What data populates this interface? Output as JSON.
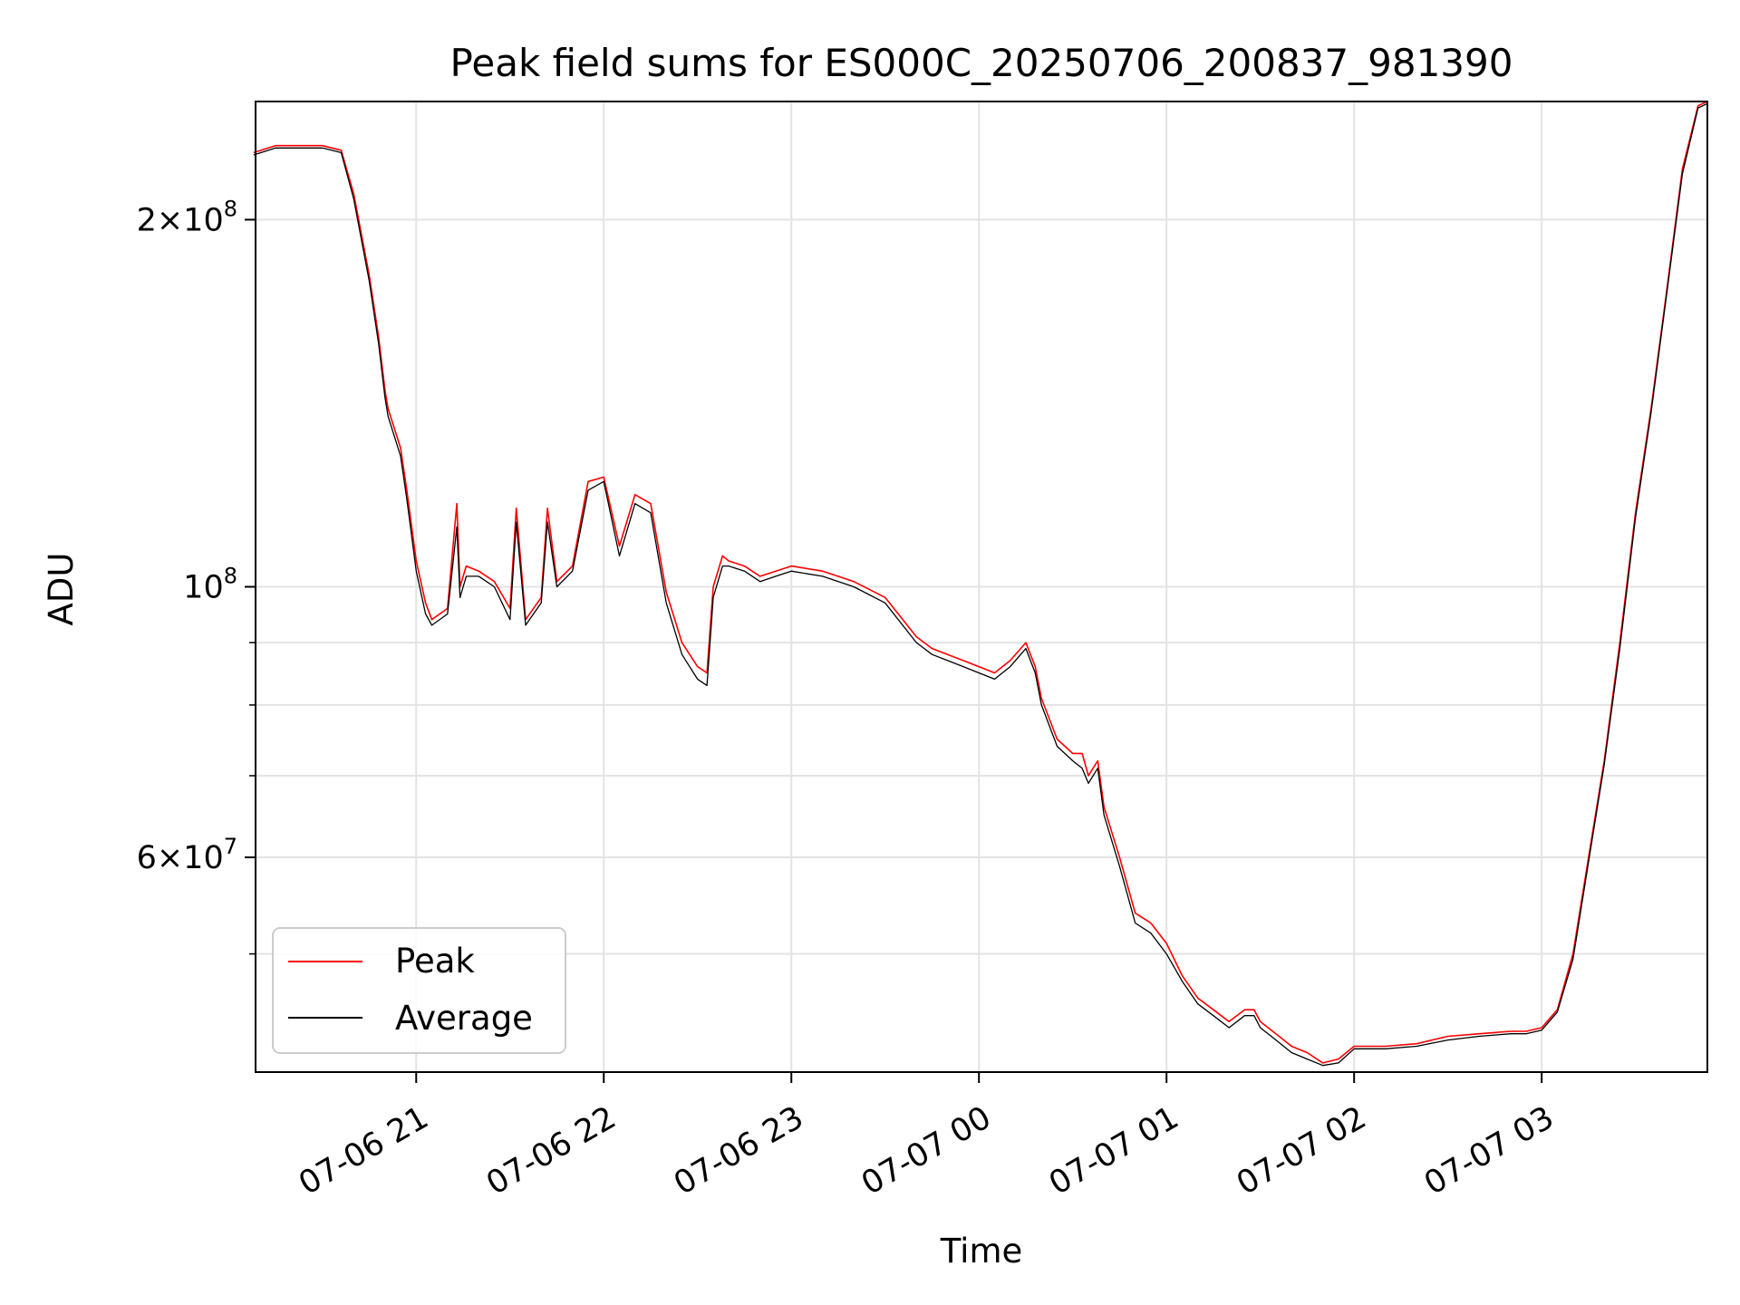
{
  "chart_data": {
    "type": "line",
    "title": "Peak field sums for ES000C_20250706_200837_981390",
    "xlabel": "Time",
    "ylabel": "ADU",
    "yscale": "log",
    "xlim": [
      "2025-07-06 20:08:37",
      "2025-07-07 03:53:00"
    ],
    "ylim": [
      40000000,
      250000000
    ],
    "grid": true,
    "legend": {
      "placement": "lower left",
      "entries": [
        "Peak",
        "Average"
      ]
    },
    "x_ticks": [
      {
        "value": "2025-07-06 21:00",
        "label": "07-06 21"
      },
      {
        "value": "2025-07-06 22:00",
        "label": "07-06 22"
      },
      {
        "value": "2025-07-06 23:00",
        "label": "07-06 23"
      },
      {
        "value": "2025-07-07 00:00",
        "label": "07-07 00"
      },
      {
        "value": "2025-07-07 01:00",
        "label": "07-07 01"
      },
      {
        "value": "2025-07-07 02:00",
        "label": "07-07 02"
      },
      {
        "value": "2025-07-07 03:00",
        "label": "07-07 03"
      }
    ],
    "y_major_ticks": [
      {
        "value": 100000000,
        "mantissa": "",
        "base": "10",
        "exp": "8"
      },
      {
        "value": 200000000,
        "mantissa": "2",
        "base": "10",
        "exp": "8"
      },
      {
        "value": 60000000,
        "mantissa": "6",
        "base": "10",
        "exp": "7"
      }
    ],
    "y_minor_ticks": [
      50000000,
      70000000,
      80000000,
      90000000
    ],
    "series": [
      {
        "name": "Peak",
        "color": "#ff0000",
        "x": [
          "2025-07-06 20:08",
          "2025-07-06 20:15",
          "2025-07-06 20:30",
          "2025-07-06 20:36",
          "2025-07-06 20:40",
          "2025-07-06 20:45",
          "2025-07-06 20:48",
          "2025-07-06 20:50",
          "2025-07-06 20:51",
          "2025-07-06 20:55",
          "2025-07-06 20:57",
          "2025-07-06 21:00",
          "2025-07-06 21:03",
          "2025-07-06 21:05",
          "2025-07-06 21:10",
          "2025-07-06 21:13",
          "2025-07-06 21:14",
          "2025-07-06 21:16",
          "2025-07-06 21:20",
          "2025-07-06 21:25",
          "2025-07-06 21:30",
          "2025-07-06 21:32",
          "2025-07-06 21:35",
          "2025-07-06 21:40",
          "2025-07-06 21:42",
          "2025-07-06 21:45",
          "2025-07-06 21:50",
          "2025-07-06 21:55",
          "2025-07-06 22:00",
          "2025-07-06 22:05",
          "2025-07-06 22:10",
          "2025-07-06 22:15",
          "2025-07-06 22:20",
          "2025-07-06 22:25",
          "2025-07-06 22:30",
          "2025-07-06 22:33",
          "2025-07-06 22:35",
          "2025-07-06 22:38",
          "2025-07-06 22:40",
          "2025-07-06 22:45",
          "2025-07-06 22:50",
          "2025-07-06 22:55",
          "2025-07-06 23:00",
          "2025-07-06 23:10",
          "2025-07-06 23:20",
          "2025-07-06 23:30",
          "2025-07-06 23:40",
          "2025-07-06 23:45",
          "2025-07-06 23:50",
          "2025-07-06 23:55",
          "2025-07-07 00:00",
          "2025-07-07 00:05",
          "2025-07-07 00:10",
          "2025-07-07 00:15",
          "2025-07-07 00:18",
          "2025-07-07 00:20",
          "2025-07-07 00:25",
          "2025-07-07 00:30",
          "2025-07-07 00:33",
          "2025-07-07 00:35",
          "2025-07-07 00:38",
          "2025-07-07 00:40",
          "2025-07-07 00:45",
          "2025-07-07 00:50",
          "2025-07-07 00:55",
          "2025-07-07 01:00",
          "2025-07-07 01:05",
          "2025-07-07 01:10",
          "2025-07-07 01:15",
          "2025-07-07 01:20",
          "2025-07-07 01:25",
          "2025-07-07 01:28",
          "2025-07-07 01:30",
          "2025-07-07 01:35",
          "2025-07-07 01:40",
          "2025-07-07 01:45",
          "2025-07-07 01:50",
          "2025-07-07 01:55",
          "2025-07-07 02:00",
          "2025-07-07 02:10",
          "2025-07-07 02:20",
          "2025-07-07 02:30",
          "2025-07-07 02:40",
          "2025-07-07 02:50",
          "2025-07-07 02:55",
          "2025-07-07 03:00",
          "2025-07-07 03:05",
          "2025-07-07 03:10",
          "2025-07-07 03:15",
          "2025-07-07 03:20",
          "2025-07-07 03:25",
          "2025-07-07 03:30",
          "2025-07-07 03:35",
          "2025-07-07 03:40",
          "2025-07-07 03:45",
          "2025-07-07 03:50",
          "2025-07-07 03:53"
        ],
        "y": [
          227000000,
          230000000,
          230000000,
          228000000,
          210000000,
          180000000,
          160000000,
          145000000,
          140000000,
          130000000,
          120000000,
          105000000,
          97000000,
          94000000,
          96000000,
          117000000,
          100000000,
          104000000,
          103000000,
          101000000,
          96000000,
          116000000,
          94000000,
          98000000,
          116000000,
          101000000,
          104000000,
          122000000,
          123000000,
          108000000,
          119000000,
          117000000,
          99000000,
          90000000,
          86000000,
          85000000,
          100000000,
          106000000,
          105000000,
          104000000,
          102000000,
          103000000,
          104000000,
          103000000,
          101000000,
          98000000,
          91000000,
          89000000,
          88000000,
          87000000,
          86000000,
          85000000,
          87000000,
          90000000,
          86000000,
          81000000,
          75000000,
          73000000,
          73000000,
          70000000,
          72000000,
          66000000,
          60000000,
          54000000,
          53000000,
          51000000,
          48000000,
          46000000,
          45000000,
          44000000,
          45000000,
          45000000,
          44000000,
          43000000,
          42000000,
          41500000,
          40700000,
          41000000,
          42000000,
          42000000,
          42200000,
          42800000,
          43000000,
          43200000,
          43200000,
          43500000,
          45000000,
          50000000,
          60000000,
          72000000,
          90000000,
          115000000,
          140000000,
          175000000,
          220000000,
          248000000,
          250000000
        ]
      },
      {
        "name": "Average",
        "color": "#000000",
        "x": [
          "2025-07-06 20:08",
          "2025-07-06 20:15",
          "2025-07-06 20:30",
          "2025-07-06 20:36",
          "2025-07-06 20:40",
          "2025-07-06 20:45",
          "2025-07-06 20:48",
          "2025-07-06 20:50",
          "2025-07-06 20:51",
          "2025-07-06 20:55",
          "2025-07-06 20:57",
          "2025-07-06 21:00",
          "2025-07-06 21:03",
          "2025-07-06 21:05",
          "2025-07-06 21:10",
          "2025-07-06 21:13",
          "2025-07-06 21:14",
          "2025-07-06 21:16",
          "2025-07-06 21:20",
          "2025-07-06 21:25",
          "2025-07-06 21:30",
          "2025-07-06 21:32",
          "2025-07-06 21:35",
          "2025-07-06 21:40",
          "2025-07-06 21:42",
          "2025-07-06 21:45",
          "2025-07-06 21:50",
          "2025-07-06 21:55",
          "2025-07-06 22:00",
          "2025-07-06 22:05",
          "2025-07-06 22:10",
          "2025-07-06 22:15",
          "2025-07-06 22:20",
          "2025-07-06 22:25",
          "2025-07-06 22:30",
          "2025-07-06 22:33",
          "2025-07-06 22:35",
          "2025-07-06 22:38",
          "2025-07-06 22:40",
          "2025-07-06 22:45",
          "2025-07-06 22:50",
          "2025-07-06 22:55",
          "2025-07-06 23:00",
          "2025-07-06 23:10",
          "2025-07-06 23:20",
          "2025-07-06 23:30",
          "2025-07-06 23:40",
          "2025-07-06 23:45",
          "2025-07-06 23:50",
          "2025-07-06 23:55",
          "2025-07-07 00:00",
          "2025-07-07 00:05",
          "2025-07-07 00:10",
          "2025-07-07 00:15",
          "2025-07-07 00:18",
          "2025-07-07 00:20",
          "2025-07-07 00:25",
          "2025-07-07 00:30",
          "2025-07-07 00:33",
          "2025-07-07 00:35",
          "2025-07-07 00:38",
          "2025-07-07 00:40",
          "2025-07-07 00:45",
          "2025-07-07 00:50",
          "2025-07-07 00:55",
          "2025-07-07 01:00",
          "2025-07-07 01:05",
          "2025-07-07 01:10",
          "2025-07-07 01:15",
          "2025-07-07 01:20",
          "2025-07-07 01:25",
          "2025-07-07 01:28",
          "2025-07-07 01:30",
          "2025-07-07 01:35",
          "2025-07-07 01:40",
          "2025-07-07 01:45",
          "2025-07-07 01:50",
          "2025-07-07 01:55",
          "2025-07-07 02:00",
          "2025-07-07 02:10",
          "2025-07-07 02:20",
          "2025-07-07 02:30",
          "2025-07-07 02:40",
          "2025-07-07 02:50",
          "2025-07-07 02:55",
          "2025-07-07 03:00",
          "2025-07-07 03:05",
          "2025-07-07 03:10",
          "2025-07-07 03:15",
          "2025-07-07 03:20",
          "2025-07-07 03:25",
          "2025-07-07 03:30",
          "2025-07-07 03:35",
          "2025-07-07 03:40",
          "2025-07-07 03:45",
          "2025-07-07 03:50",
          "2025-07-07 03:53"
        ],
        "y": [
          226000000,
          229000000,
          229000000,
          227000000,
          208000000,
          178000000,
          158000000,
          143000000,
          138000000,
          128000000,
          118000000,
          103000000,
          95000000,
          93000000,
          95000000,
          112000000,
          98000000,
          102000000,
          102000000,
          100000000,
          94000000,
          113000000,
          93000000,
          97000000,
          113000000,
          100000000,
          103000000,
          120000000,
          122000000,
          106000000,
          117000000,
          115000000,
          97000000,
          88000000,
          84000000,
          83000000,
          98000000,
          104000000,
          104000000,
          103000000,
          101000000,
          102000000,
          103000000,
          102000000,
          100000000,
          97000000,
          90000000,
          88000000,
          87000000,
          86000000,
          85000000,
          84000000,
          86000000,
          89000000,
          85000000,
          80000000,
          74000000,
          72000000,
          71000000,
          69000000,
          71000000,
          65000000,
          59000000,
          53000000,
          52000000,
          50000000,
          47500000,
          45500000,
          44500000,
          43500000,
          44500000,
          44500000,
          43500000,
          42500000,
          41500000,
          41000000,
          40500000,
          40700000,
          41800000,
          41800000,
          42000000,
          42500000,
          42800000,
          43000000,
          43000000,
          43300000,
          44800000,
          49500000,
          59500000,
          71500000,
          89000000,
          114000000,
          139000000,
          174000000,
          218000000,
          247000000,
          249000000
        ]
      }
    ]
  }
}
